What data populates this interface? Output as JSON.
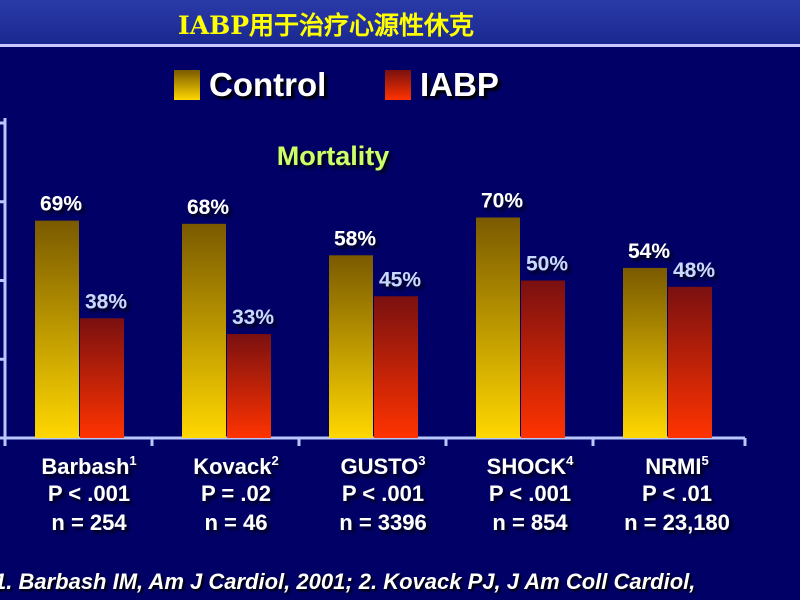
{
  "slide": {
    "title": "IABP用于治疗心源性休克",
    "citation": "1. Barbash IM, Am J Cardiol, 2001; 2. Kovack PJ, J Am Coll Cardiol,"
  },
  "legend": [
    {
      "label": "Control",
      "icon": "control-swatch"
    },
    {
      "label": "IABP",
      "icon": "iabp-swatch"
    }
  ],
  "colors": {
    "background": "#000066",
    "title": "#ffff00",
    "chart_title": "#ccff66",
    "control_top": "#7a5a00",
    "control_bottom": "#ffd700",
    "iabp_top": "#7a1010",
    "iabp_bottom": "#ff3300",
    "axis": "#b8c8ff",
    "value_label": "#ffffff",
    "iabp_value_label": "#c8d8ff"
  },
  "chart_data": {
    "type": "bar",
    "title": "Mortality",
    "categories": [
      "Barbash",
      "Kovack",
      "GUSTO",
      "SHOCK",
      "NRMI"
    ],
    "superscripts": [
      "1",
      "2",
      "3",
      "4",
      "5"
    ],
    "p_values": [
      "P < .001",
      "P = .02",
      "P < .001",
      "P < .001",
      "P < .01"
    ],
    "n_values": [
      "n = 254",
      "n = 46",
      "n = 3396",
      "n = 854",
      "n = 23,180"
    ],
    "series": [
      {
        "name": "Control",
        "values": [
          69,
          68,
          58,
          70,
          54
        ],
        "labels": [
          "69%",
          "68%",
          "58%",
          "70%",
          "54%"
        ]
      },
      {
        "name": "IABP",
        "values": [
          38,
          33,
          45,
          50,
          48
        ],
        "labels": [
          "38%",
          "33%",
          "45%",
          "50%",
          "48%"
        ]
      }
    ],
    "ylim": [
      0,
      100
    ],
    "grid": false,
    "legend_position": "top"
  }
}
